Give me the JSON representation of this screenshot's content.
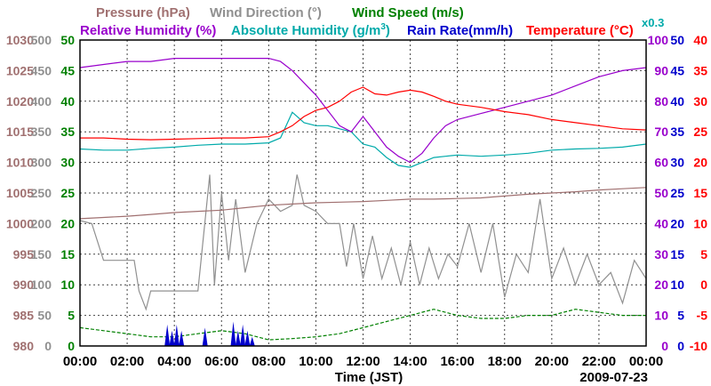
{
  "chart_data": {
    "type": "line",
    "legend": [
      {
        "key": "pressure",
        "label": "Pressure (hPa)",
        "color": "#a07070"
      },
      {
        "key": "wind_direction",
        "label": "Wind Direction (°)",
        "color": "#909090"
      },
      {
        "key": "wind_speed",
        "label": "Wind Speed (m/s)",
        "color": "#008000"
      },
      {
        "key": "humidity",
        "label": "Relative Humidity (%)",
        "color": "#9900cc"
      },
      {
        "key": "abs_humidity_a",
        "label": "Absolute Humidity (g/m",
        "color": "#00aaaa"
      },
      {
        "key": "abs_humidity_sup",
        "label": "3",
        "color": "#00aaaa"
      },
      {
        "key": "abs_humidity_b",
        "label": ")",
        "color": "#00aaaa"
      },
      {
        "key": "rain",
        "label": "Rain Rate(mm/h)",
        "color": "#0000cc"
      },
      {
        "key": "temperature",
        "label": "Temperature (°C)",
        "color": "#ff0000"
      }
    ],
    "abs_humidity_scale_label": "x0.3",
    "xlabel": "Time (JST)",
    "date": "2009-07-23",
    "x_tick_labels": [
      "00:00",
      "02:00",
      "04:00",
      "06:00",
      "08:00",
      "10:00",
      "12:00",
      "14:00",
      "16:00",
      "18:00",
      "20:00",
      "22:00",
      "00:00"
    ],
    "xlim": [
      0,
      24
    ],
    "axes": {
      "pressure": {
        "ticks": [
          "1030",
          "1025",
          "1020",
          "1015",
          "1010",
          "1005",
          "1000",
          "995",
          "990",
          "985",
          "980"
        ],
        "ylim": [
          980,
          1030
        ],
        "color": "#a07070"
      },
      "wind_direction": {
        "ticks": [
          "500",
          "450",
          "400",
          "350",
          "300",
          "250",
          "200",
          "150",
          "100",
          "50",
          "0"
        ],
        "ylim": [
          0,
          500
        ],
        "color": "#909090"
      },
      "wind_speed": {
        "ticks": [
          "50",
          "45",
          "40",
          "35",
          "30",
          "25",
          "20",
          "15",
          "10",
          "5",
          "0"
        ],
        "ylim": [
          0,
          50
        ],
        "color": "#008000"
      },
      "humidity": {
        "ticks": [
          "100",
          "90",
          "80",
          "70",
          "60",
          "50",
          "40",
          "30",
          "20",
          "10",
          "0"
        ],
        "ylim": [
          0,
          100
        ],
        "color": "#9900cc"
      },
      "rain": {
        "ticks": [
          "50",
          "45",
          "40",
          "35",
          "30",
          "25",
          "20",
          "15",
          "10",
          "5",
          "0"
        ],
        "ylim": [
          0,
          50
        ],
        "color": "#0000cc"
      },
      "temperature": {
        "ticks": [
          "40",
          "35",
          "30",
          "25",
          "20",
          "15",
          "10",
          "5",
          "0",
          "-5",
          "-10"
        ],
        "ylim": [
          -10,
          40
        ],
        "color": "#ff0000"
      }
    },
    "series": [
      {
        "name": "Relative Humidity",
        "axis": "humidity",
        "x": [
          0,
          1,
          2,
          3,
          4,
          5,
          6,
          7,
          8,
          8.5,
          9,
          9.5,
          10,
          10.5,
          11,
          11.5,
          12,
          12.5,
          13,
          13.5,
          14,
          14.5,
          15,
          15.5,
          16,
          17,
          18,
          19,
          20,
          21,
          22,
          23,
          24
        ],
        "values": [
          91,
          92,
          93,
          93,
          94,
          94,
          94,
          94,
          94,
          93,
          90,
          86,
          82,
          77,
          72,
          70,
          75,
          70,
          65,
          62,
          60,
          63,
          68,
          72,
          74,
          76,
          78,
          80,
          82,
          85,
          88,
          90,
          91
        ]
      },
      {
        "name": "Temperature",
        "axis": "temperature",
        "x": [
          0,
          1,
          2,
          3,
          4,
          5,
          6,
          7,
          8,
          8.5,
          9,
          9.5,
          10,
          10.5,
          11,
          11.5,
          12,
          12.5,
          13,
          13.5,
          14,
          14.5,
          15,
          15.5,
          16,
          17,
          18,
          19,
          20,
          21,
          22,
          23,
          24
        ],
        "values": [
          24,
          24,
          23.8,
          23.7,
          23.8,
          23.9,
          24,
          24,
          24.2,
          25,
          26,
          27.5,
          28.5,
          29,
          30,
          31.5,
          32.3,
          31.2,
          31,
          31.5,
          31.8,
          31.5,
          30.8,
          30,
          29.5,
          29,
          28.3,
          27.8,
          27,
          26.5,
          26,
          25.5,
          25.3
        ]
      },
      {
        "name": "Absolute Humidity",
        "axis": "pressure",
        "x": [
          0,
          1,
          2,
          3,
          4,
          5,
          6,
          7,
          8,
          8.5,
          9,
          9.5,
          10,
          10.5,
          11,
          11.5,
          12,
          12.5,
          13,
          13.5,
          14,
          14.5,
          15,
          15.5,
          16,
          17,
          18,
          19,
          20,
          21,
          22,
          23,
          24
        ],
        "values": [
          1012.2,
          1012,
          1012,
          1012.3,
          1012.5,
          1012.8,
          1013,
          1013,
          1013.2,
          1014,
          1018.2,
          1016.5,
          1016,
          1016,
          1015.5,
          1015,
          1013,
          1012.5,
          1010.8,
          1009.5,
          1009.2,
          1010,
          1010.8,
          1011,
          1011.2,
          1011,
          1011.2,
          1011.5,
          1012,
          1012.2,
          1012.3,
          1012.5,
          1013
        ]
      },
      {
        "name": "Pressure",
        "axis": "pressure",
        "x": [
          0,
          1,
          2,
          3,
          4,
          5,
          6,
          7,
          8,
          9,
          10,
          11,
          12,
          13,
          14,
          15,
          16,
          17,
          18,
          19,
          20,
          21,
          22,
          23,
          24
        ],
        "values": [
          1000.8,
          1001,
          1001.2,
          1001.5,
          1001.8,
          1002,
          1002.2,
          1002.6,
          1003,
          1003.2,
          1003.4,
          1003.5,
          1003.6,
          1003.8,
          1004,
          1004,
          1004.1,
          1004.2,
          1004.5,
          1004.8,
          1005,
          1005.2,
          1005.5,
          1005.7,
          1005.9
        ]
      },
      {
        "name": "Wind Direction",
        "axis": "wind_direction",
        "x": [
          0,
          0.5,
          1,
          1.5,
          2,
          2.3,
          2.5,
          2.8,
          3,
          4,
          5,
          5.5,
          5.7,
          6,
          6.3,
          6.6,
          7,
          7.5,
          8,
          8.5,
          9,
          9.2,
          9.5,
          10,
          10.5,
          11,
          11.3,
          11.6,
          12,
          12.4,
          12.8,
          13.2,
          13.6,
          14,
          14.4,
          14.8,
          15.2,
          15.6,
          16,
          16.5,
          17,
          17.5,
          18,
          18.5,
          19,
          19.5,
          20,
          20.5,
          21,
          21.5,
          22,
          22.5,
          23,
          23.5,
          24
        ],
        "values": [
          205,
          200,
          140,
          140,
          140,
          140,
          90,
          60,
          90,
          90,
          90,
          280,
          100,
          250,
          140,
          240,
          120,
          200,
          240,
          220,
          230,
          280,
          230,
          220,
          200,
          200,
          130,
          200,
          110,
          180,
          110,
          160,
          100,
          170,
          100,
          160,
          110,
          150,
          130,
          200,
          120,
          200,
          80,
          150,
          120,
          240,
          110,
          160,
          100,
          150,
          100,
          120,
          70,
          140,
          110
        ]
      },
      {
        "name": "Wind Speed",
        "axis": "wind_speed",
        "x": [
          0,
          1,
          2,
          3,
          4,
          5,
          6,
          7,
          8,
          9,
          10,
          11,
          12,
          13,
          14,
          15,
          16,
          17,
          18,
          19,
          20,
          21,
          22,
          23,
          24
        ],
        "values": [
          3,
          2.5,
          2,
          1.5,
          1.5,
          2,
          2.5,
          2,
          1,
          1.2,
          1.5,
          2,
          3,
          4,
          5,
          6,
          5,
          4.5,
          4.5,
          5,
          5,
          6,
          5.5,
          5,
          5
        ]
      },
      {
        "name": "Rain Rate",
        "axis": "rain",
        "x": [
          3.7,
          3.9,
          4.1,
          4.3,
          5.3,
          6.5,
          6.7,
          6.9,
          7.1,
          7.3
        ],
        "values": [
          3.5,
          2.5,
          3.5,
          2.5,
          3,
          4,
          2.5,
          3.5,
          2.5,
          1.5
        ]
      }
    ]
  }
}
